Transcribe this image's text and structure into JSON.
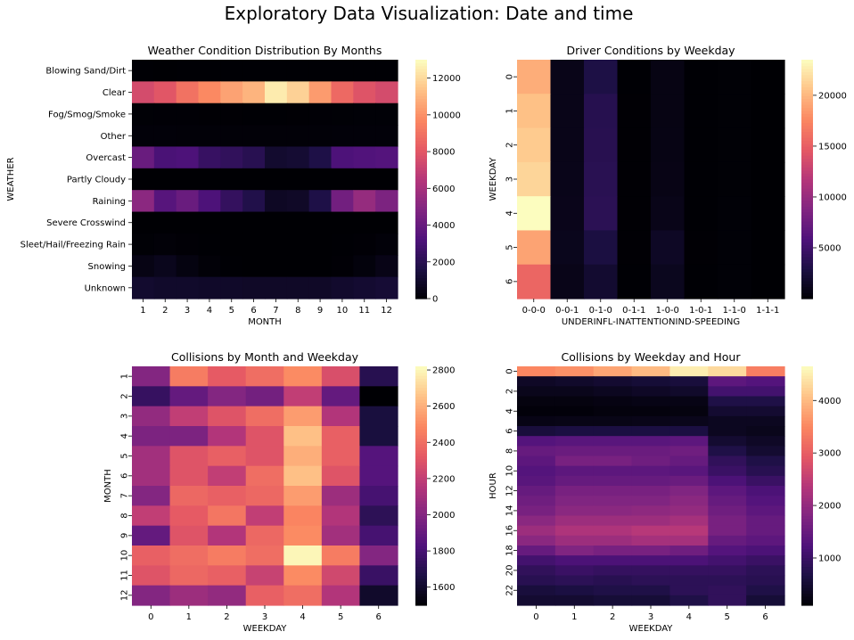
{
  "suptitle": "Exploratory Data Visualization: Date and time",
  "colorscale": [
    "#000004",
    "#1c1044",
    "#4f127b",
    "#812581",
    "#b5367a",
    "#e55964",
    "#fb8761",
    "#fec287",
    "#fcfdbf"
  ],
  "chart_data": [
    {
      "type": "heatmap",
      "title": "Weather Condition Distribution By Months",
      "xlabel": "MONTH",
      "ylabel": "WEATHER",
      "x": [
        "1",
        "2",
        "3",
        "4",
        "5",
        "6",
        "7",
        "8",
        "9",
        "10",
        "11",
        "12"
      ],
      "y": [
        "Blowing Sand/Dirt",
        "Clear",
        "Fog/Smog/Smoke",
        "Other",
        "Overcast",
        "Partly Cloudy",
        "Raining",
        "Severe Crosswind",
        "Sleet/Hail/Freezing Rain",
        "Snowing",
        "Unknown"
      ],
      "values": [
        [
          15,
          12,
          14,
          13,
          15,
          14,
          16,
          18,
          15,
          14,
          13,
          14
        ],
        [
          7500,
          8000,
          9000,
          9800,
          10500,
          11000,
          12500,
          11800,
          10300,
          8700,
          7900,
          7500
        ],
        [
          60,
          50,
          45,
          35,
          30,
          25,
          25,
          30,
          40,
          55,
          65,
          70
        ],
        [
          120,
          115,
          110,
          105,
          110,
          105,
          100,
          105,
          110,
          115,
          120,
          125
        ],
        [
          4100,
          3100,
          3200,
          2500,
          2300,
          2000,
          1100,
          1200,
          1700,
          3200,
          3300,
          3400
        ],
        [
          3,
          2,
          3,
          2,
          3,
          2,
          3,
          3,
          2,
          3,
          2,
          3
        ],
        [
          5200,
          3500,
          4100,
          3200,
          2400,
          1800,
          800,
          900,
          1700,
          4400,
          5500,
          4700
        ],
        [
          8,
          7,
          9,
          6,
          5,
          4,
          4,
          5,
          6,
          8,
          9,
          10
        ],
        [
          60,
          90,
          50,
          20,
          10,
          5,
          5,
          5,
          10,
          20,
          40,
          120
        ],
        [
          400,
          600,
          300,
          100,
          20,
          5,
          5,
          5,
          10,
          50,
          200,
          450
        ],
        [
          1100,
          1000,
          1000,
          950,
          950,
          900,
          900,
          900,
          900,
          1050,
          1150,
          1250
        ]
      ],
      "colorbar": {
        "min": 0,
        "max": 13000,
        "ticks": [
          0,
          2000,
          4000,
          6000,
          8000,
          10000,
          12000
        ]
      }
    },
    {
      "type": "heatmap",
      "title": "Driver Conditions by Weekday",
      "xlabel": "UNDERINFL-INATTENTIONIND-SPEEDING",
      "ylabel": "WEEKDAY",
      "x": [
        "0-0-0",
        "0-0-1",
        "0-1-0",
        "0-1-1",
        "1-0-0",
        "1-0-1",
        "1-1-0",
        "1-1-1"
      ],
      "y": [
        "0",
        "1",
        "2",
        "3",
        "4",
        "5",
        "6"
      ],
      "values": [
        [
          19500,
          900,
          3000,
          50,
          700,
          50,
          100,
          5
        ],
        [
          20500,
          900,
          3500,
          60,
          700,
          50,
          100,
          5
        ],
        [
          21000,
          900,
          3600,
          60,
          750,
          50,
          110,
          5
        ],
        [
          21500,
          950,
          3700,
          60,
          800,
          50,
          110,
          5
        ],
        [
          23500,
          1000,
          3800,
          60,
          900,
          50,
          120,
          5
        ],
        [
          19000,
          1100,
          2800,
          60,
          1500,
          60,
          150,
          5
        ],
        [
          15500,
          900,
          2000,
          50,
          1200,
          50,
          130,
          5
        ]
      ],
      "colorbar": {
        "min": 0,
        "max": 23500,
        "ticks": [
          5000,
          10000,
          15000,
          20000
        ]
      }
    },
    {
      "type": "heatmap",
      "title": "Collisions by Month and Weekday",
      "xlabel": "WEEKDAY",
      "ylabel": "MONTH",
      "x": [
        "0",
        "1",
        "2",
        "3",
        "4",
        "5",
        "6"
      ],
      "y": [
        "1",
        "2",
        "3",
        "4",
        "5",
        "6",
        "7",
        "8",
        "9",
        "10",
        "11",
        "12"
      ],
      "values": [
        [
          2000,
          2450,
          2330,
          2400,
          2500,
          2280,
          1700
        ],
        [
          1750,
          1900,
          2000,
          1950,
          2200,
          1900,
          1500
        ],
        [
          2050,
          2200,
          2300,
          2400,
          2550,
          2150,
          1650
        ],
        [
          1980,
          1980,
          2150,
          2300,
          2650,
          2350,
          1650
        ],
        [
          2100,
          2300,
          2350,
          2300,
          2600,
          2350,
          1850
        ],
        [
          2100,
          2300,
          2200,
          2400,
          2650,
          2300,
          1850
        ],
        [
          2000,
          2380,
          2350,
          2380,
          2550,
          2080,
          1800
        ],
        [
          2200,
          2330,
          2430,
          2200,
          2480,
          2150,
          1720
        ],
        [
          1900,
          2300,
          2150,
          2380,
          2500,
          2100,
          1800
        ],
        [
          2350,
          2400,
          2450,
          2400,
          2800,
          2450,
          2000
        ],
        [
          2300,
          2380,
          2350,
          2220,
          2500,
          2250,
          1760
        ],
        [
          2000,
          2080,
          2050,
          2350,
          2400,
          2150,
          1600
        ]
      ],
      "colorbar": {
        "min": 1500,
        "max": 2820,
        "ticks": [
          1600,
          1800,
          2000,
          2200,
          2400,
          2600,
          2800
        ]
      }
    },
    {
      "type": "heatmap",
      "title": "Collisions by Weekday and Hour",
      "xlabel": "WEEKDAY",
      "ylabel": "HOUR",
      "x": [
        "0",
        "1",
        "2",
        "3",
        "4",
        "5",
        "6"
      ],
      "y": [
        "0",
        "1",
        "2",
        "3",
        "4",
        "5",
        "6",
        "7",
        "8",
        "9",
        "10",
        "11",
        "12",
        "13",
        "14",
        "15",
        "16",
        "17",
        "18",
        "19",
        "20",
        "21",
        "22",
        "23"
      ],
      "y_tick_labels": [
        "0",
        "",
        "2",
        "",
        "4",
        "",
        "6",
        "",
        "8",
        "",
        "10",
        "",
        "12",
        "",
        "14",
        "",
        "16",
        "",
        "18",
        "",
        "20",
        "",
        "22",
        ""
      ],
      "values": [
        [
          3500,
          3600,
          3800,
          4000,
          4500,
          4300,
          3400
        ],
        [
          400,
          450,
          500,
          550,
          600,
          1400,
          1300
        ],
        [
          300,
          300,
          350,
          400,
          450,
          1100,
          1100
        ],
        [
          200,
          200,
          220,
          250,
          250,
          700,
          700
        ],
        [
          150,
          150,
          180,
          180,
          200,
          500,
          500
        ],
        [
          250,
          260,
          260,
          280,
          300,
          350,
          350
        ],
        [
          600,
          650,
          650,
          650,
          650,
          350,
          300
        ],
        [
          1300,
          1350,
          1350,
          1350,
          1400,
          500,
          400
        ],
        [
          1500,
          1550,
          1550,
          1550,
          1600,
          700,
          500
        ],
        [
          1400,
          1700,
          1700,
          1600,
          1500,
          900,
          700
        ],
        [
          1300,
          1400,
          1400,
          1400,
          1350,
          1000,
          800
        ],
        [
          1350,
          1500,
          1500,
          1500,
          1550,
          1200,
          1000
        ],
        [
          1500,
          1700,
          1700,
          1700,
          1800,
          1400,
          1200
        ],
        [
          1600,
          1800,
          1800,
          1800,
          1900,
          1500,
          1300
        ],
        [
          1700,
          1900,
          1900,
          1950,
          2000,
          1600,
          1400
        ],
        [
          1900,
          2100,
          2100,
          2100,
          2200,
          1700,
          1500
        ],
        [
          2100,
          2300,
          2300,
          2400,
          2400,
          1700,
          1500
        ],
        [
          1900,
          2100,
          2100,
          2200,
          2200,
          1500,
          1400
        ],
        [
          1500,
          1800,
          1700,
          1700,
          1600,
          1300,
          1200
        ],
        [
          1100,
          1200,
          1200,
          1200,
          1200,
          1100,
          1000
        ],
        [
          900,
          1000,
          950,
          950,
          950,
          950,
          850
        ],
        [
          800,
          850,
          800,
          850,
          850,
          850,
          800
        ],
        [
          600,
          650,
          700,
          700,
          850,
          900,
          700
        ],
        [
          500,
          500,
          550,
          550,
          700,
          900,
          550
        ]
      ],
      "colorbar": {
        "min": 100,
        "max": 4650,
        "ticks": [
          1000,
          2000,
          3000,
          4000
        ]
      }
    }
  ]
}
